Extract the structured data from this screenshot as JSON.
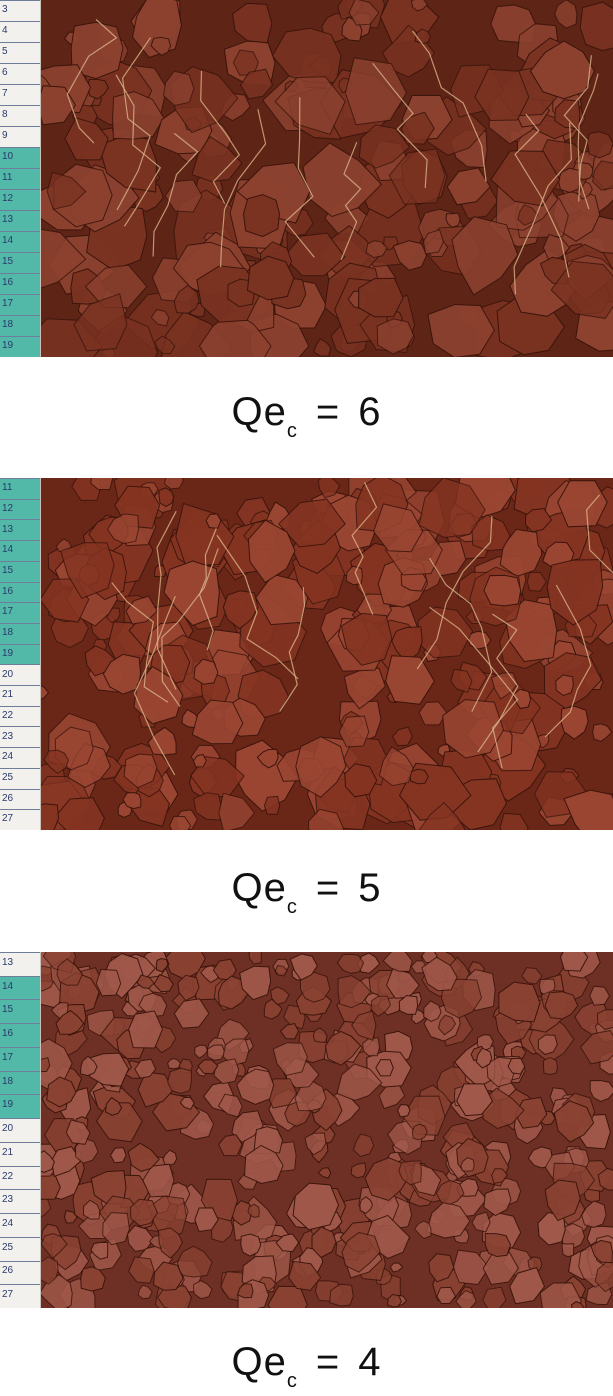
{
  "panels": [
    {
      "label_main": "Qe",
      "label_sub": "c",
      "equals": "=",
      "score": "6",
      "ruler_start": 3,
      "ruler_end": 19,
      "band_from": 10,
      "band_to": 19,
      "soil_color": "#5e2416",
      "clod_color": "#7a3221",
      "highlight": "#8d4230"
    },
    {
      "label_main": "Qe",
      "label_sub": "c",
      "equals": "=",
      "score": "5",
      "ruler_start": 11,
      "ruler_end": 27,
      "band_from": 11,
      "band_to": 19,
      "soil_color": "#6a2718",
      "clod_color": "#853422",
      "highlight": "#9a4633"
    },
    {
      "label_main": "Qe",
      "label_sub": "c",
      "equals": "=",
      "score": "4",
      "ruler_start": 13,
      "ruler_end": 27,
      "band_from": 14,
      "band_to": 19,
      "soil_color": "#6e3024",
      "clod_color": "#8a4232",
      "highlight": "#a0584a"
    }
  ],
  "colors": {
    "ruler_band": "#52b8a8",
    "caption": "#111111"
  }
}
